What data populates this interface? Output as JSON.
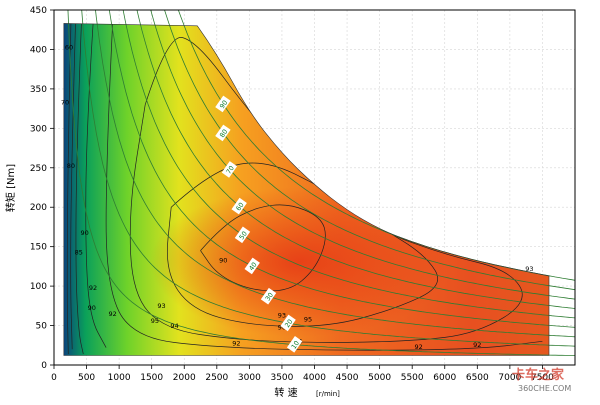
{
  "chart_data": {
    "type": "heatmap",
    "xlabel_main": "转 速",
    "xlabel_unit": "[r/min]",
    "ylabel": "转矩 [Nm]",
    "xlim": [
      0,
      8000
    ],
    "ylim": [
      0,
      450
    ],
    "xticks": [
      0,
      500,
      1000,
      1500,
      2000,
      2500,
      3000,
      3500,
      4000,
      4500,
      5000,
      5500,
      6000,
      6500,
      7000,
      7500
    ],
    "yticks": [
      0,
      50,
      100,
      150,
      200,
      250,
      300,
      350,
      400,
      450
    ],
    "grid": true,
    "envelope": [
      {
        "x": 150,
        "y": 12
      },
      {
        "x": 150,
        "y": 433
      },
      {
        "x": 2200,
        "y": 430
      },
      {
        "x": 2500,
        "y": 395
      },
      {
        "x": 3000,
        "y": 320
      },
      {
        "x": 3500,
        "y": 268
      },
      {
        "x": 4000,
        "y": 228
      },
      {
        "x": 4500,
        "y": 196
      },
      {
        "x": 5000,
        "y": 172
      },
      {
        "x": 5500,
        "y": 156
      },
      {
        "x": 6000,
        "y": 143
      },
      {
        "x": 6500,
        "y": 132
      },
      {
        "x": 7000,
        "y": 123
      },
      {
        "x": 7600,
        "y": 113
      },
      {
        "x": 7600,
        "y": 12
      }
    ],
    "efficiency_contours": [
      {
        "label": "95",
        "points": [
          {
            "x": 2250,
            "y": 145
          },
          {
            "x": 2600,
            "y": 178
          },
          {
            "x": 3100,
            "y": 200
          },
          {
            "x": 3600,
            "y": 205
          },
          {
            "x": 4100,
            "y": 188
          },
          {
            "x": 4200,
            "y": 160
          },
          {
            "x": 4000,
            "y": 120
          },
          {
            "x": 3600,
            "y": 93
          },
          {
            "x": 3000,
            "y": 95
          },
          {
            "x": 2500,
            "y": 115
          },
          {
            "x": 2250,
            "y": 145
          }
        ]
      },
      {
        "label": "94",
        "points": [
          {
            "x": 1800,
            "y": 200
          },
          {
            "x": 2400,
            "y": 245
          },
          {
            "x": 3200,
            "y": 262
          },
          {
            "x": 4200,
            "y": 222
          },
          {
            "x": 5000,
            "y": 175
          },
          {
            "x": 5700,
            "y": 140
          },
          {
            "x": 6000,
            "y": 100
          },
          {
            "x": 5200,
            "y": 70
          },
          {
            "x": 4200,
            "y": 48
          },
          {
            "x": 3000,
            "y": 50
          },
          {
            "x": 2100,
            "y": 70
          },
          {
            "x": 1700,
            "y": 120
          },
          {
            "x": 1800,
            "y": 200
          }
        ]
      },
      {
        "label": "93",
        "points": [
          {
            "x": 1400,
            "y": 330
          },
          {
            "x": 1750,
            "y": 420
          },
          {
            "x": 2200,
            "y": 410
          },
          {
            "x": 3000,
            "y": 320
          },
          {
            "x": 4000,
            "y": 230
          },
          {
            "x": 5000,
            "y": 170
          },
          {
            "x": 6000,
            "y": 140
          },
          {
            "x": 7000,
            "y": 120
          },
          {
            "x": 7300,
            "y": 80
          },
          {
            "x": 6500,
            "y": 40
          },
          {
            "x": 5500,
            "y": 30
          },
          {
            "x": 4000,
            "y": 28
          },
          {
            "x": 2800,
            "y": 32
          },
          {
            "x": 1700,
            "y": 45
          },
          {
            "x": 1200,
            "y": 90
          },
          {
            "x": 1150,
            "y": 200
          },
          {
            "x": 1400,
            "y": 330
          }
        ]
      },
      {
        "label": "92",
        "points": [
          {
            "x": 900,
            "y": 433
          },
          {
            "x": 800,
            "y": 260
          },
          {
            "x": 800,
            "y": 100
          },
          {
            "x": 1200,
            "y": 35
          },
          {
            "x": 2500,
            "y": 22
          },
          {
            "x": 4500,
            "y": 18
          },
          {
            "x": 6500,
            "y": 20
          },
          {
            "x": 7500,
            "y": 30
          }
        ]
      },
      {
        "label": "90",
        "points": [
          {
            "x": 600,
            "y": 433
          },
          {
            "x": 500,
            "y": 300
          },
          {
            "x": 480,
            "y": 150
          },
          {
            "x": 550,
            "y": 60
          },
          {
            "x": 800,
            "y": 22
          }
        ]
      },
      {
        "label": "85",
        "points": [
          {
            "x": 420,
            "y": 433
          },
          {
            "x": 350,
            "y": 280
          },
          {
            "x": 330,
            "y": 120
          },
          {
            "x": 380,
            "y": 40
          },
          {
            "x": 450,
            "y": 14
          }
        ]
      },
      {
        "label": "80",
        "points": [
          {
            "x": 330,
            "y": 433
          },
          {
            "x": 270,
            "y": 260
          },
          {
            "x": 250,
            "y": 100
          },
          {
            "x": 280,
            "y": 20
          }
        ]
      },
      {
        "label": "70",
        "points": [
          {
            "x": 260,
            "y": 433
          },
          {
            "x": 210,
            "y": 250
          },
          {
            "x": 200,
            "y": 80
          },
          {
            "x": 220,
            "y": 14
          }
        ]
      }
    ],
    "contour_labels": [
      {
        "text": "93",
        "x": 1650,
        "y": 72
      },
      {
        "text": "93",
        "x": 3500,
        "y": 60
      },
      {
        "text": "93",
        "x": 7300,
        "y": 119
      },
      {
        "text": "94",
        "x": 1850,
        "y": 47
      },
      {
        "text": "94",
        "x": 3750,
        "y": 27
      },
      {
        "text": "95",
        "x": 1550,
        "y": 53
      },
      {
        "text": "95",
        "x": 3900,
        "y": 55
      },
      {
        "text": "92",
        "x": 600,
        "y": 95
      },
      {
        "text": "92",
        "x": 900,
        "y": 62
      },
      {
        "text": "92",
        "x": 2800,
        "y": 25
      },
      {
        "text": "92",
        "x": 5600,
        "y": 20
      },
      {
        "text": "92",
        "x": 6500,
        "y": 23
      },
      {
        "text": "90",
        "x": 580,
        "y": 70
      },
      {
        "text": "90",
        "x": 470,
        "y": 165
      },
      {
        "text": "90",
        "x": 2600,
        "y": 130
      },
      {
        "text": "90",
        "x": 3500,
        "y": 45
      },
      {
        "text": "85",
        "x": 380,
        "y": 140
      },
      {
        "text": "80",
        "x": 260,
        "y": 250
      },
      {
        "text": "70",
        "x": 170,
        "y": 330
      },
      {
        "text": "60",
        "x": 230,
        "y": 400
      }
    ],
    "power_curves": [
      {
        "label": "10",
        "kw": 10,
        "label_rpm": 3700
      },
      {
        "label": "20",
        "kw": 20,
        "label_rpm": 3600
      },
      {
        "label": "30",
        "kw": 30,
        "label_rpm": 3300
      },
      {
        "label": "40",
        "kw": 40,
        "label_rpm": 3050
      },
      {
        "label": "50",
        "kw": 50,
        "label_rpm": 2900
      },
      {
        "label": "60",
        "kw": 60,
        "label_rpm": 2850
      },
      {
        "label": "70",
        "kw": 70,
        "label_rpm": 2700
      },
      {
        "label": "80",
        "kw": 80,
        "label_rpm": 2600
      },
      {
        "label": "90",
        "kw": 90,
        "label_rpm": 2600
      }
    ],
    "watermark": {
      "main": "卡车之家",
      "sub": "360CHE.COM"
    }
  }
}
